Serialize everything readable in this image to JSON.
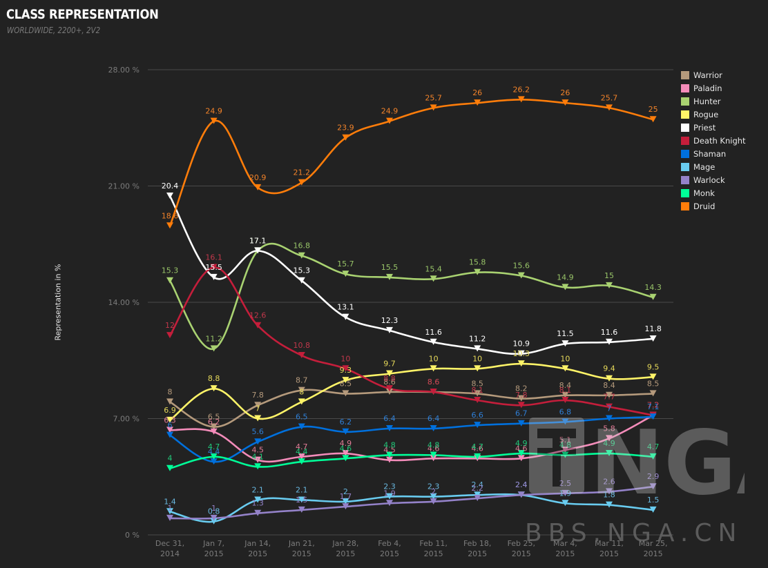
{
  "header": {
    "title": "CLASS REPRESENTATION",
    "subtitle": "WORLDWIDE, 2200+, 2V2"
  },
  "watermark": {
    "logo_text": "NGA",
    "site_text": "BBS.NGA.CN"
  },
  "chart_data": {
    "type": "line",
    "title": "CLASS REPRESENTATION",
    "subtitle": "WORLDWIDE, 2200+, 2V2",
    "ylabel": "Representation in %",
    "xlabel": "",
    "ylim": [
      0,
      28
    ],
    "yticks": [
      0,
      7,
      14,
      21,
      28
    ],
    "ytick_labels": [
      "0 %",
      "7.00 %",
      "14.00 %",
      "21.00 %",
      "28.00 %"
    ],
    "categories": [
      [
        "Dec 31,",
        "2014"
      ],
      [
        "Jan 7,",
        "2015"
      ],
      [
        "Jan 14,",
        "2015"
      ],
      [
        "Jan 21,",
        "2015"
      ],
      [
        "Jan 28,",
        "2015"
      ],
      [
        "Feb 4,",
        "2015"
      ],
      [
        "Feb 11,",
        "2015"
      ],
      [
        "Feb 18,",
        "2015"
      ],
      [
        "Feb 25,",
        "2015"
      ],
      [
        "Mar 4,",
        "2015"
      ],
      [
        "Mar 11,",
        "2015"
      ],
      [
        "Mar 25,",
        "2015"
      ]
    ],
    "legend_position": "right",
    "series": [
      {
        "name": "Warrior",
        "color": "#b59a7c",
        "label_color": "#b59a7c",
        "values": [
          8,
          6.5,
          7.8,
          8.7,
          8.5,
          8.6,
          8.6,
          8.5,
          8.2,
          8.4,
          8.4,
          8.5
        ]
      },
      {
        "name": "Paladin",
        "color": "#f48cba",
        "label_color": "#e07c96",
        "values": [
          6.3,
          6.2,
          4.5,
          4.7,
          4.9,
          4.5,
          4.6,
          4.6,
          4.6,
          5.1,
          5.8,
          7.2
        ]
      },
      {
        "name": "Hunter",
        "color": "#a9d271",
        "label_color": "#98c468",
        "values": [
          15.3,
          11.2,
          17.1,
          16.8,
          15.7,
          15.5,
          15.4,
          15.8,
          15.6,
          14.9,
          15,
          14.3
        ]
      },
      {
        "name": "Rogue",
        "color": "#fff468",
        "label_color": "#e6d95a",
        "values": [
          6.9,
          8.8,
          7,
          8,
          9.3,
          9.7,
          10,
          10,
          10.3,
          10,
          9.4,
          9.5
        ]
      },
      {
        "name": "Priest",
        "color": "#ffffff",
        "label_color": "#ffffff",
        "values": [
          20.4,
          15.5,
          17.1,
          15.3,
          13.1,
          12.3,
          11.6,
          11.2,
          10.9,
          11.5,
          11.6,
          11.8
        ]
      },
      {
        "name": "Death Knight",
        "color": "#c41e3b",
        "label_color": "#c0384b",
        "values": [
          12,
          16.1,
          12.6,
          10.8,
          10,
          8.8,
          8.6,
          8.1,
          7.8,
          8.1,
          7.7,
          7.2
        ]
      },
      {
        "name": "Shaman",
        "color": "#0070dd",
        "label_color": "#2f7fd6",
        "values": [
          6,
          4.4,
          5.6,
          6.5,
          6.2,
          6.4,
          6.4,
          6.6,
          6.7,
          6.8,
          7,
          7.1
        ]
      },
      {
        "name": "Mage",
        "color": "#69ccf0",
        "label_color": "#69b8e0",
        "values": [
          1.4,
          0.8,
          2.1,
          2.1,
          2,
          2.3,
          2.3,
          2.4,
          2.4,
          1.9,
          1.8,
          1.5
        ]
      },
      {
        "name": "Warlock",
        "color": "#9482c9",
        "label_color": "#9482c9",
        "values": [
          1,
          1,
          1.3,
          1.5,
          1.7,
          1.9,
          2,
          2.2,
          2.4,
          2.5,
          2.6,
          2.9
        ]
      },
      {
        "name": "Monk",
        "color": "#00ff98",
        "label_color": "#21c97a",
        "values": [
          4,
          4.7,
          4.1,
          4.4,
          4.6,
          4.8,
          4.8,
          4.7,
          4.9,
          4.8,
          4.9,
          4.7
        ]
      },
      {
        "name": "Druid",
        "color": "#ff7d0a",
        "label_color": "#f0822a",
        "values": [
          18.6,
          24.9,
          20.9,
          21.2,
          23.9,
          24.9,
          25.7,
          26,
          26.2,
          26,
          25.7,
          25
        ]
      }
    ]
  }
}
